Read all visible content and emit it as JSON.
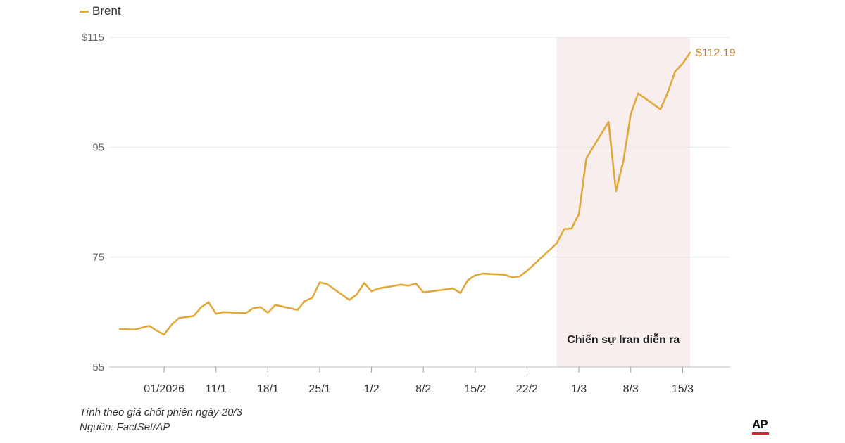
{
  "chart_data": {
    "type": "line",
    "title": "",
    "xlabel": "",
    "ylabel": "",
    "legend": {
      "position": "top-left",
      "entries": [
        "Brent"
      ]
    },
    "y_ticks": [
      "$115",
      "95",
      "75",
      "55"
    ],
    "y_tick_values": [
      115,
      95,
      75,
      55
    ],
    "ylim": [
      55,
      115
    ],
    "x_ticks": [
      "01/2026",
      "11/1",
      "18/1",
      "25/1",
      "1/2",
      "8/2",
      "15/2",
      "22/2",
      "1/3",
      "8/3",
      "15/3"
    ],
    "x_tick_dates": [
      "2026-01-04",
      "2026-01-11",
      "2026-01-18",
      "2026-01-25",
      "2026-02-01",
      "2026-02-08",
      "2026-02-15",
      "2026-02-22",
      "2026-03-01",
      "2026-03-08",
      "2026-03-15"
    ],
    "xlim": [
      "2025-12-29",
      "2026-03-20"
    ],
    "grid": {
      "horizontal": true,
      "vertical": false
    },
    "series": [
      {
        "name": "Brent",
        "color": "#e0a83a",
        "points": [
          [
            "2025-12-29",
            61.9
          ],
          [
            "2025-12-31",
            61.8
          ],
          [
            "2026-01-02",
            62.5
          ],
          [
            "2026-01-03",
            61.6
          ],
          [
            "2026-01-04",
            60.9
          ],
          [
            "2026-01-05",
            62.7
          ],
          [
            "2026-01-06",
            63.9
          ],
          [
            "2026-01-08",
            64.3
          ],
          [
            "2026-01-09",
            65.9
          ],
          [
            "2026-01-10",
            66.8
          ],
          [
            "2026-01-11",
            64.7
          ],
          [
            "2026-01-12",
            65.0
          ],
          [
            "2026-01-15",
            64.8
          ],
          [
            "2026-01-16",
            65.7
          ],
          [
            "2026-01-17",
            65.9
          ],
          [
            "2026-01-18",
            64.9
          ],
          [
            "2026-01-19",
            66.3
          ],
          [
            "2026-01-22",
            65.4
          ],
          [
            "2026-01-23",
            67.0
          ],
          [
            "2026-01-24",
            67.6
          ],
          [
            "2026-01-25",
            70.4
          ],
          [
            "2026-01-26",
            70.1
          ],
          [
            "2026-01-29",
            67.2
          ],
          [
            "2026-01-30",
            68.2
          ],
          [
            "2026-01-31",
            70.3
          ],
          [
            "2026-02-01",
            68.8
          ],
          [
            "2026-02-02",
            69.3
          ],
          [
            "2026-02-05",
            70.0
          ],
          [
            "2026-02-06",
            69.8
          ],
          [
            "2026-02-07",
            70.2
          ],
          [
            "2026-02-08",
            68.6
          ],
          [
            "2026-02-12",
            69.3
          ],
          [
            "2026-02-13",
            68.5
          ],
          [
            "2026-02-14",
            70.8
          ],
          [
            "2026-02-15",
            71.7
          ],
          [
            "2026-02-16",
            72.0
          ],
          [
            "2026-02-19",
            71.8
          ],
          [
            "2026-02-20",
            71.3
          ],
          [
            "2026-02-21",
            71.5
          ],
          [
            "2026-02-22",
            72.5
          ],
          [
            "2026-02-26",
            77.5
          ],
          [
            "2026-02-27",
            80.1
          ],
          [
            "2026-02-28",
            80.2
          ],
          [
            "2026-03-01",
            82.8
          ],
          [
            "2026-03-02",
            93.0
          ],
          [
            "2026-03-05",
            99.6
          ],
          [
            "2026-03-06",
            87.0
          ],
          [
            "2026-03-07",
            92.5
          ],
          [
            "2026-03-08",
            101.1
          ],
          [
            "2026-03-09",
            104.8
          ],
          [
            "2026-03-12",
            101.9
          ],
          [
            "2026-03-13",
            105.0
          ],
          [
            "2026-03-14",
            108.8
          ],
          [
            "2026-03-15",
            110.2
          ],
          [
            "2026-03-16",
            112.19
          ]
        ]
      }
    ],
    "annotations": [
      {
        "type": "shaded_region",
        "start": "2026-02-26",
        "end": "2026-03-16",
        "label": "Chiến sự Iran diễn ra",
        "color": "#f8eeee"
      },
      {
        "type": "end_label",
        "date": "2026-03-16",
        "value": 112.19,
        "text": "$112.19"
      }
    ]
  },
  "legend_label": "Brent",
  "footnote": "Tính theo giá chốt phiên ngày 20/3",
  "source": "Nguồn: FactSet/AP",
  "logo_text": "AP",
  "colors": {
    "line": "#e0a83a",
    "shade": "#f8eeee",
    "grid": "#e6e6e6",
    "logo_bar": "#d6242a"
  }
}
